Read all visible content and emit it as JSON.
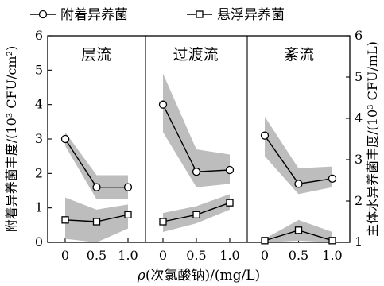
{
  "chart_data": {
    "type": "line",
    "legend": {
      "placement": "top",
      "entries": [
        {
          "label": "附着异养菌",
          "marker": "circle"
        },
        {
          "label": "悬浮异养菌",
          "marker": "square"
        }
      ]
    },
    "xlabel_rho": "ρ",
    "xlabel_rest": "(次氯酸钠)/(mg/L)",
    "x_ticks": [
      "0",
      "0.5",
      "1.0"
    ],
    "x": [
      0,
      0.5,
      1.0
    ],
    "ylabel_left": "附着异养菌丰度/(10³ CFU/cm²)",
    "ylabel_right": "主体水异养菌丰度/(10³ CFU/mL)",
    "ylim_left": [
      0,
      6
    ],
    "ylim_right": [
      1,
      6
    ],
    "y_ticks_left": [
      "0",
      "1",
      "2",
      "3",
      "4",
      "5",
      "6"
    ],
    "y_ticks_right": [
      "1",
      "2",
      "3",
      "4",
      "5",
      "6"
    ],
    "band_color": "#bdbdbd",
    "line_color": "#000000",
    "panels": [
      {
        "title": "层流",
        "attached": {
          "values": [
            3.0,
            1.6,
            1.6
          ],
          "lower": [
            2.8,
            1.25,
            1.25
          ],
          "upper": [
            3.2,
            1.95,
            1.95
          ]
        },
        "suspended": {
          "values": [
            0.65,
            0.6,
            0.8
          ],
          "lower": [
            0.1,
            0.0,
            0.4
          ],
          "upper": [
            1.3,
            0.95,
            1.1
          ]
        }
      },
      {
        "title": "过渡流",
        "attached": {
          "values": [
            4.0,
            2.05,
            2.1
          ],
          "lower": [
            3.2,
            1.6,
            1.7
          ],
          "upper": [
            4.9,
            2.7,
            2.55
          ]
        },
        "suspended": {
          "values": [
            0.6,
            0.8,
            1.15
          ],
          "lower": [
            0.3,
            0.55,
            0.95
          ],
          "upper": [
            0.85,
            1.05,
            1.4
          ]
        }
      },
      {
        "title": "紊流",
        "attached": {
          "values": [
            3.1,
            1.7,
            1.85
          ],
          "lower": [
            2.5,
            1.4,
            1.6
          ],
          "upper": [
            3.65,
            2.15,
            2.2
          ]
        },
        "suspended": {
          "values": [
            0.05,
            0.35,
            0.05
          ],
          "lower": [
            -0.3,
            0.05,
            -0.1
          ],
          "upper": [
            0.1,
            0.65,
            0.3
          ]
        }
      }
    ]
  }
}
